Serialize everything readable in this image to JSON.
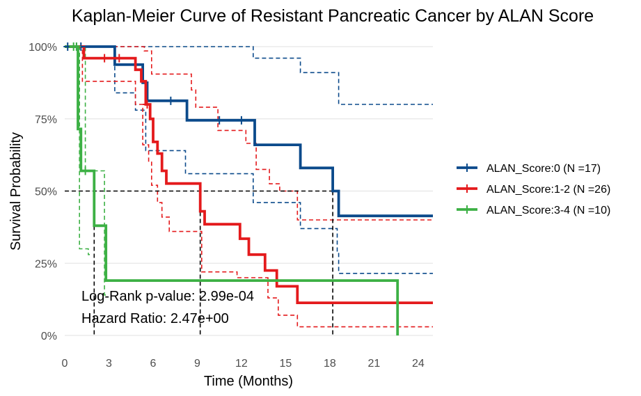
{
  "chart_data": {
    "type": "line",
    "title": "Kaplan-Meier Curve of Resistant Pancreatic Cancer by ALAN Score",
    "xlabel": "Time (Months)",
    "ylabel": "Survival Probability",
    "xlim": [
      0,
      25
    ],
    "ylim": [
      0,
      1
    ],
    "x_ticks": [
      0,
      3,
      6,
      9,
      12,
      15,
      18,
      21,
      24
    ],
    "x_tick_labels": [
      "0",
      "3",
      "6",
      "9",
      "12",
      "15",
      "18",
      "21",
      "24"
    ],
    "y_ticks": [
      0,
      0.25,
      0.5,
      0.75,
      1.0
    ],
    "y_tick_labels": [
      "0%",
      "25%",
      "50%",
      "75%",
      "100%"
    ],
    "grid": "horizontal",
    "legend_position": "right",
    "series": [
      {
        "name": "ALAN_Score:0 (N =17)",
        "color": "#0b4a8b",
        "steps": [
          [
            0,
            1.0
          ],
          [
            3.4,
            0.9375
          ],
          [
            5.3,
            0.875
          ],
          [
            5.6,
            0.8125
          ],
          [
            8.3,
            0.745
          ],
          [
            12.9,
            0.66
          ],
          [
            16.0,
            0.58
          ],
          [
            18.2,
            0.5
          ],
          [
            18.6,
            0.414
          ],
          [
            25,
            0.414
          ]
        ],
        "censored": [
          [
            0.2,
            1.0
          ],
          [
            0.8,
            1.0
          ],
          [
            1.1,
            1.0
          ],
          [
            7.2,
            0.8125
          ],
          [
            10.5,
            0.745
          ],
          [
            12.0,
            0.745
          ]
        ],
        "ci_upper": [
          [
            0,
            1.0
          ],
          [
            8.2,
            1.0
          ],
          [
            12.8,
            0.96
          ],
          [
            16.0,
            0.91
          ],
          [
            18.6,
            0.8
          ],
          [
            25,
            0.8
          ]
        ],
        "ci_lower": [
          [
            0,
            1.0
          ],
          [
            3.4,
            0.84
          ],
          [
            4.8,
            0.78
          ],
          [
            5.5,
            0.64
          ],
          [
            8.2,
            0.56
          ],
          [
            12.8,
            0.46
          ],
          [
            16.0,
            0.37
          ],
          [
            18.5,
            0.29
          ],
          [
            18.6,
            0.215
          ],
          [
            25,
            0.215
          ]
        ]
      },
      {
        "name": "ALAN_Score:1-2 (N =26)",
        "color": "#e41a1c",
        "steps": [
          [
            0,
            1.0
          ],
          [
            1.3,
            0.96
          ],
          [
            4.8,
            0.92
          ],
          [
            5.2,
            0.88
          ],
          [
            5.5,
            0.8
          ],
          [
            5.8,
            0.75
          ],
          [
            6.0,
            0.67
          ],
          [
            6.3,
            0.63
          ],
          [
            6.6,
            0.57
          ],
          [
            6.9,
            0.526
          ],
          [
            9.2,
            0.43
          ],
          [
            9.5,
            0.385
          ],
          [
            11.9,
            0.335
          ],
          [
            12.5,
            0.28
          ],
          [
            13.6,
            0.225
          ],
          [
            14.4,
            0.17
          ],
          [
            15.8,
            0.113
          ],
          [
            25,
            0.113
          ]
        ],
        "censored": [
          [
            2.7,
            0.96
          ],
          [
            3.7,
            0.96
          ],
          [
            5.6,
            0.8
          ]
        ],
        "ci_upper": [
          [
            0,
            1.0
          ],
          [
            5.4,
            0.985
          ],
          [
            5.9,
            0.905
          ],
          [
            8.6,
            0.85
          ],
          [
            8.9,
            0.79
          ],
          [
            9.8,
            0.79
          ],
          [
            10.4,
            0.71
          ],
          [
            12.3,
            0.665
          ],
          [
            13.0,
            0.575
          ],
          [
            13.9,
            0.525
          ],
          [
            14.6,
            0.5
          ],
          [
            15.8,
            0.4
          ],
          [
            25,
            0.4
          ]
        ],
        "ci_lower": [
          [
            0,
            1.0
          ],
          [
            1.2,
            0.88
          ],
          [
            4.8,
            0.8
          ],
          [
            5.3,
            0.66
          ],
          [
            5.7,
            0.6
          ],
          [
            5.9,
            0.52
          ],
          [
            6.3,
            0.46
          ],
          [
            6.6,
            0.41
          ],
          [
            7.1,
            0.36
          ],
          [
            9.3,
            0.22
          ],
          [
            11.7,
            0.2
          ],
          [
            13.8,
            0.13
          ],
          [
            14.5,
            0.07
          ],
          [
            15.8,
            0.03
          ],
          [
            25,
            0.03
          ]
        ]
      },
      {
        "name": "ALAN_Score:3-4 (N =10)",
        "color": "#3cb044",
        "steps": [
          [
            0,
            1.0
          ],
          [
            0.9,
            0.715
          ],
          [
            1.1,
            0.57
          ],
          [
            2.0,
            0.38
          ],
          [
            2.8,
            0.19
          ],
          [
            22.6,
            0.19
          ],
          [
            22.6,
            0.0
          ]
        ],
        "censored": [
          [
            0.6,
            1.0
          ],
          [
            0.8,
            1.0
          ],
          [
            1.4,
            0.57
          ]
        ],
        "ci_upper": [
          [
            0,
            1.0
          ],
          [
            1.4,
            0.57
          ],
          [
            2.7,
            0.14
          ],
          [
            2.8,
            0.14
          ]
        ],
        "ci_lower": [
          [
            0,
            1.0
          ],
          [
            1.0,
            0.3
          ],
          [
            1.6,
            0.28
          ],
          [
            1.7,
            0.28
          ]
        ]
      }
    ],
    "median_lines": [
      2.0,
      9.2,
      18.2
    ],
    "annotations": [
      "Log-Rank p-value: 2.99e-04",
      "Hazard Ratio: 2.47e+00"
    ]
  }
}
